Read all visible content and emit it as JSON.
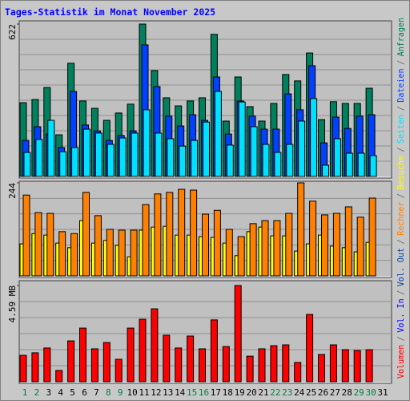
{
  "title": "Tages-Statistik im Monat November 2025",
  "legend_separator": "/",
  "chart_data": [
    {
      "type": "bar",
      "ylim": [
        0,
        622
      ],
      "yticks": [
        622
      ],
      "series": [
        {
          "name": "Anfragen",
          "color": "#00805c",
          "values": [
            301,
            314,
            363,
            170,
            462,
            308,
            278,
            229,
            259,
            295,
            622,
            432,
            321,
            288,
            308,
            321,
            580,
            226,
            406,
            285,
            226,
            298,
            416,
            390,
            504,
            232,
            305,
            298,
            298,
            360,
            null
          ]
        },
        {
          "name": "Dateien",
          "color": "#0040ff",
          "values": [
            147,
            203,
            173,
            118,
            347,
            210,
            186,
            147,
            167,
            186,
            537,
            367,
            246,
            206,
            252,
            229,
            406,
            173,
            308,
            246,
            193,
            193,
            337,
            272,
            452,
            137,
            242,
            196,
            246,
            252,
            null
          ]
        },
        {
          "name": "Seiten",
          "color": "#00e0ff",
          "values": [
            98,
            151,
            229,
            101,
            118,
            193,
            177,
            131,
            157,
            177,
            272,
            177,
            154,
            124,
            147,
            222,
            347,
            128,
            304,
            203,
            131,
            98,
            131,
            226,
            318,
            46,
            154,
            95,
            95,
            85,
            null
          ]
        }
      ]
    },
    {
      "type": "bar",
      "ylim": [
        0,
        244
      ],
      "yticks": [
        244
      ],
      "series": [
        {
          "name": "Besuche",
          "color": "#ffff00",
          "values": [
            84,
            111,
            107,
            86,
            74,
            145,
            86,
            93,
            80,
            50,
            120,
            128,
            130,
            107,
            107,
            103,
            101,
            86,
            53,
            116,
            128,
            105,
            105,
            65,
            84,
            107,
            78,
            74,
            63,
            88,
            null
          ]
        },
        {
          "name": "Rechner",
          "color": "#ff8000",
          "values": [
            212,
            166,
            164,
            116,
            111,
            219,
            158,
            122,
            120,
            120,
            187,
            215,
            219,
            227,
            225,
            162,
            172,
            122,
            103,
            137,
            145,
            145,
            164,
            244,
            196,
            160,
            164,
            181,
            154,
            204,
            null
          ]
        }
      ]
    },
    {
      "type": "bar",
      "ylim": [
        0,
        4.59
      ],
      "yticks": [
        {
          "value": 4.59,
          "label": "4.59 MB"
        }
      ],
      "categories": [
        "1",
        "2",
        "3",
        "4",
        "5",
        "6",
        "7",
        "8",
        "9",
        "10",
        "11",
        "12",
        "13",
        "14",
        "15",
        "16",
        "17",
        "18",
        "19",
        "20",
        "21",
        "22",
        "23",
        "24",
        "25",
        "26",
        "27",
        "28",
        "29",
        "30",
        "31"
      ],
      "category_colors": [
        "#008040",
        "#008040",
        "#000000",
        "#000000",
        "#000000",
        "#000000",
        "#000000",
        "#008040",
        "#008040",
        "#000000",
        "#000000",
        "#000000",
        "#000000",
        "#000000",
        "#008040",
        "#008040",
        "#000000",
        "#000000",
        "#000000",
        "#000000",
        "#000000",
        "#008040",
        "#008040",
        "#000000",
        "#000000",
        "#000000",
        "#000000",
        "#000000",
        "#008040",
        "#008040",
        "#000000"
      ],
      "series": [
        {
          "name": "Volumen",
          "color": "#ff0000",
          "values": [
            1.26,
            1.38,
            1.61,
            0.54,
            1.95,
            2.56,
            1.57,
            1.87,
            1.07,
            2.56,
            2.98,
            3.48,
            2.22,
            1.61,
            2.18,
            1.57,
            2.95,
            1.68,
            4.59,
            1.22,
            1.57,
            1.72,
            1.76,
            0.92,
            3.21,
            1.3,
            1.76,
            1.53,
            1.49,
            1.53,
            null
          ]
        },
        {
          "name": "Vol. In",
          "color": "#0000ff",
          "values": [
            0,
            0,
            0,
            0,
            0,
            0,
            0,
            0,
            0,
            0,
            0,
            0,
            0,
            0,
            0,
            0,
            0,
            0,
            0,
            0,
            0,
            0,
            0,
            0,
            0,
            0,
            0,
            0,
            0,
            0,
            null
          ]
        },
        {
          "name": "Vol. Out",
          "color": "#0040a0",
          "values": [
            0,
            0,
            0,
            0,
            0,
            0,
            0,
            0,
            0,
            0,
            0,
            0,
            0,
            0,
            0,
            0,
            0,
            0,
            0,
            0,
            0,
            0,
            0,
            0,
            0,
            0,
            0,
            0,
            0,
            0,
            null
          ]
        }
      ]
    }
  ]
}
